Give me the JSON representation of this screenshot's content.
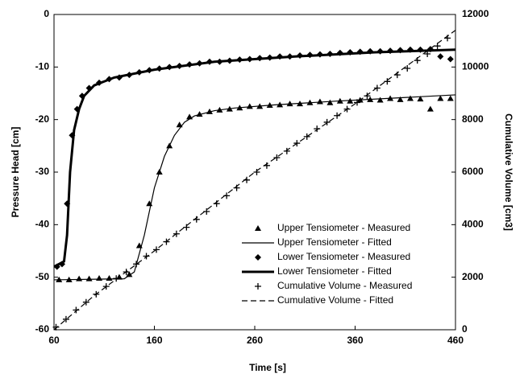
{
  "chart_data": {
    "type": "scatter",
    "xlabel": "Time [s]",
    "ylabel": "Pressure Head [cm]",
    "y2label": "Cumulative Volume [cm3]",
    "xlim": [
      60,
      460
    ],
    "xticks": [
      60,
      160,
      260,
      360,
      460
    ],
    "ylim": [
      -60,
      0
    ],
    "yticks": [
      -60,
      -50,
      -40,
      -30,
      -20,
      -10,
      0
    ],
    "y2lim": [
      0,
      12000
    ],
    "y2ticks": [
      0,
      2000,
      4000,
      6000,
      8000,
      10000,
      12000
    ],
    "legend": "lower right",
    "series": [
      {
        "name": "Upper Tensiometer - Measured",
        "color": "#000000",
        "style": "triangle",
        "x": [
          65,
          75,
          85,
          95,
          105,
          115,
          125,
          135,
          145,
          155,
          165,
          175,
          185,
          195,
          205,
          215,
          225,
          235,
          245,
          255,
          265,
          275,
          285,
          295,
          305,
          315,
          325,
          335,
          345,
          355,
          365,
          375,
          385,
          395,
          405,
          415,
          425,
          435,
          445,
          455
        ],
        "values": [
          -50.5,
          -50.5,
          -50.3,
          -50.3,
          -50.2,
          -50.2,
          -50,
          -49.5,
          -44,
          -36,
          -30,
          -25,
          -21,
          -19.5,
          -19,
          -18.5,
          -18.2,
          -18,
          -17.8,
          -17.5,
          -17.5,
          -17.3,
          -17.2,
          -17,
          -17,
          -16.8,
          -16.6,
          -16.8,
          -16.5,
          -16.5,
          -16.3,
          -16.2,
          -16.3,
          -16,
          -16.2,
          -16,
          -16.1,
          -18,
          -16,
          -16
        ]
      },
      {
        "name": "Upper Tensiometer - Fitted",
        "color": "#000000",
        "style": "line",
        "x": [
          60,
          130,
          140,
          150,
          160,
          170,
          180,
          190,
          200,
          220,
          240,
          280,
          340,
          400,
          460
        ],
        "values": [
          -50.5,
          -50.3,
          -49,
          -42,
          -33,
          -27,
          -23,
          -20.5,
          -19.3,
          -18.3,
          -17.8,
          -17.2,
          -16.5,
          -15.9,
          -15.3
        ]
      },
      {
        "name": "Lower Tensiometer - Measured",
        "color": "#000000",
        "style": "diamond",
        "x": [
          63,
          68,
          73,
          78,
          83,
          88,
          95,
          105,
          115,
          125,
          135,
          145,
          155,
          165,
          175,
          185,
          195,
          205,
          215,
          225,
          235,
          245,
          255,
          265,
          275,
          285,
          295,
          305,
          315,
          325,
          335,
          345,
          355,
          365,
          375,
          385,
          395,
          405,
          415,
          425,
          435,
          445,
          455
        ],
        "values": [
          -48,
          -47.5,
          -36,
          -23,
          -18,
          -15.5,
          -14,
          -13,
          -12.3,
          -12,
          -11.5,
          -11,
          -10.6,
          -10.3,
          -10,
          -9.8,
          -9.5,
          -9.3,
          -9,
          -9,
          -8.8,
          -8.6,
          -8.5,
          -8.3,
          -8.2,
          -8,
          -8,
          -7.8,
          -7.7,
          -7.6,
          -7.5,
          -7.3,
          -7.2,
          -7.1,
          -7,
          -7,
          -6.9,
          -6.8,
          -6.7,
          -6.7,
          -6.6,
          -8,
          -8.5
        ]
      },
      {
        "name": "Lower Tensiometer - Fitted",
        "color": "#000000",
        "style": "thick-line",
        "x": [
          60,
          70,
          73,
          76,
          80,
          85,
          90,
          100,
          120,
          160,
          220,
          300,
          380,
          460
        ],
        "values": [
          -48,
          -47,
          -42,
          -30,
          -22,
          -18,
          -15.5,
          -13.5,
          -12,
          -10.5,
          -9,
          -8,
          -7.2,
          -6.7
        ]
      },
      {
        "name": "Cumulative Volume - Measured",
        "color": "#000000",
        "style": "plus",
        "axis": "y2",
        "x": [
          62,
          72,
          82,
          92,
          102,
          112,
          122,
          132,
          142,
          152,
          162,
          172,
          182,
          192,
          202,
          212,
          222,
          232,
          242,
          252,
          262,
          272,
          282,
          292,
          302,
          312,
          322,
          332,
          342,
          352,
          362,
          372,
          382,
          392,
          402,
          412,
          422,
          432,
          442,
          452
        ],
        "values": [
          100,
          400,
          750,
          1050,
          1350,
          1650,
          1950,
          2200,
          2500,
          2800,
          3050,
          3350,
          3650,
          3900,
          4200,
          4500,
          4800,
          5100,
          5400,
          5700,
          6000,
          6250,
          6550,
          6800,
          7100,
          7350,
          7650,
          7900,
          8150,
          8400,
          8650,
          8900,
          9200,
          9450,
          9700,
          9950,
          10250,
          10500,
          10800,
          11100
        ]
      },
      {
        "name": "Cumulative Volume - Fitted",
        "color": "#000000",
        "style": "dashed-line",
        "axis": "y2",
        "x": [
          60,
          100,
          160,
          260,
          360,
          460
        ],
        "values": [
          0,
          1300,
          3000,
          6000,
          8600,
          11400
        ]
      }
    ]
  }
}
